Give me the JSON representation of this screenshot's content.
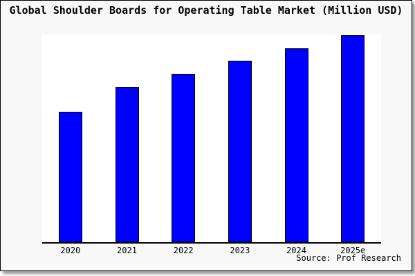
{
  "source": {
    "label": "Source: Prof Research"
  },
  "colors": {
    "bar_fill": "#0000ff",
    "bar_border": "#000000",
    "card_background": "#f8f8f8",
    "plot_background": "#ffffff",
    "axis": "#000000",
    "text": "#000000"
  },
  "chart_data": {
    "type": "bar",
    "title": "Global Shoulder Boards for Operating Table Market (Million USD)",
    "categories": [
      "2020",
      "2021",
      "2022",
      "2023",
      "2024",
      "2025e"
    ],
    "values": [
      62.7,
      74.9,
      81.2,
      87.5,
      93.4,
      99.7
    ],
    "value_scale": "percent of tallest bar (no y-axis values shown in image)",
    "xlabel": "",
    "ylabel": "",
    "ylim": [
      0,
      100
    ],
    "grid": false,
    "legend": "none",
    "y_axis_visible": false
  }
}
